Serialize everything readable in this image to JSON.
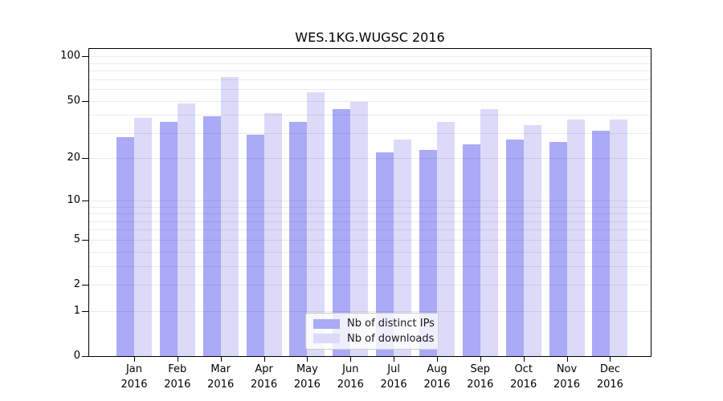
{
  "chart_data": {
    "type": "bar",
    "title": "WES.1KG.WUGSC 2016",
    "categories": [
      "Jan",
      "Feb",
      "Mar",
      "Apr",
      "May",
      "Jun",
      "Jul",
      "Aug",
      "Sep",
      "Oct",
      "Nov",
      "Dec"
    ],
    "x_year_label": "2016",
    "series": [
      {
        "name": "Nb of distinct IPs",
        "color": "#aaaaf7",
        "values": [
          28,
          36,
          39,
          29,
          36,
          44,
          22,
          23,
          25,
          27,
          26,
          31
        ]
      },
      {
        "name": "Nb of downloads",
        "color": "#dbdbf9",
        "values": [
          38,
          48,
          72,
          41,
          57,
          49,
          27,
          36,
          44,
          34,
          37,
          37
        ]
      }
    ],
    "xlabel": "",
    "ylabel": "",
    "y_scale": "log1p",
    "y_ticks": [
      0,
      1,
      2,
      5,
      10,
      20,
      50,
      100
    ],
    "y_minor_gridlines": [
      3,
      4,
      6,
      7,
      8,
      9,
      30,
      40,
      60,
      70,
      80,
      90
    ],
    "y_max": 112,
    "ylim": [
      0,
      112
    ],
    "grid": "on",
    "grid_over_bars": true,
    "legend_position": "bottom-center",
    "background_color": "#ffffff",
    "axis_color": "#000000"
  }
}
